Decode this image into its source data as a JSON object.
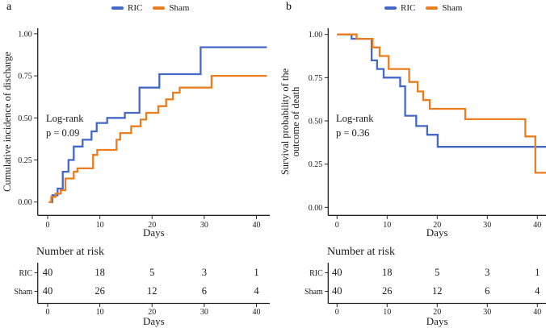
{
  "figure_title": "",
  "legend": {
    "entries": [
      {
        "label": "RIC",
        "color": "#4468C8"
      },
      {
        "label": "Sham",
        "color": "#EC7D1E"
      }
    ]
  },
  "chart_data": [
    {
      "type": "line",
      "step": true,
      "panel_label": "a",
      "xlabel": "Days",
      "ylabel_lines": [
        "Cumulative incidence of discharge"
      ],
      "xlim": [
        0,
        42
      ],
      "ylim": [
        0,
        1
      ],
      "x_ticks": [
        0,
        10,
        20,
        30,
        40
      ],
      "y_tick_values": [
        0,
        0.25,
        0.5,
        0.75,
        1
      ],
      "y_tick_labels": [
        "0.00",
        "0.25",
        "0.50",
        "0.75",
        "1.00"
      ],
      "grid": false,
      "legend_position": "top",
      "annotation_lines": [
        "Log-rank",
        "p = 0.09"
      ],
      "series": [
        {
          "name": "RIC",
          "color": "#4468C8",
          "points": [
            [
              0.3,
              0
            ],
            [
              0.9,
              0.04
            ],
            [
              1.9,
              0.08
            ],
            [
              2.9,
              0.18
            ],
            [
              4.0,
              0.25
            ],
            [
              5.0,
              0.33
            ],
            [
              6.7,
              0.37
            ],
            [
              8.4,
              0.42
            ],
            [
              9.4,
              0.47
            ],
            [
              11.4,
              0.5
            ],
            [
              14.8,
              0.53
            ],
            [
              17.6,
              0.68
            ],
            [
              21.4,
              0.76
            ],
            [
              29.3,
              0.92
            ],
            [
              42,
              0.92
            ]
          ]
        },
        {
          "name": "Sham",
          "color": "#EC7D1E",
          "points": [
            [
              0.2,
              0
            ],
            [
              0.7,
              0.03
            ],
            [
              1.5,
              0.05
            ],
            [
              2.5,
              0.07
            ],
            [
              3.4,
              0.14
            ],
            [
              5.0,
              0.18
            ],
            [
              5.7,
              0.2
            ],
            [
              8.7,
              0.28
            ],
            [
              9.5,
              0.31
            ],
            [
              13.2,
              0.37
            ],
            [
              13.9,
              0.41
            ],
            [
              16.0,
              0.45
            ],
            [
              17.8,
              0.49
            ],
            [
              18.9,
              0.53
            ],
            [
              21.2,
              0.57
            ],
            [
              22.7,
              0.61
            ],
            [
              24.0,
              0.65
            ],
            [
              25.3,
              0.68
            ],
            [
              31.4,
              0.75
            ],
            [
              42,
              0.75
            ]
          ]
        }
      ],
      "risk_table": {
        "title": "Number at risk",
        "xlabel": "Days",
        "x_ticks": [
          0,
          10,
          20,
          30,
          40
        ],
        "rows": [
          {
            "name": "RIC",
            "values": [
              "40",
              "18",
              "5",
              "3",
              "1"
            ]
          },
          {
            "name": "Sham",
            "values": [
              "40",
              "26",
              "12",
              "6",
              "4"
            ]
          }
        ]
      }
    },
    {
      "type": "line",
      "step": true,
      "panel_label": "b",
      "xlabel": "Days",
      "ylabel_lines": [
        "Survival probability of the",
        "outcome of death"
      ],
      "xlim": [
        0,
        42
      ],
      "ylim": [
        0,
        1
      ],
      "x_ticks": [
        0,
        10,
        20,
        30,
        40
      ],
      "y_tick_values": [
        0,
        0.25,
        0.5,
        0.75,
        1
      ],
      "y_tick_labels": [
        "0.00",
        "0.25",
        "0.50",
        "0.75",
        "1.00"
      ],
      "grid": false,
      "legend_position": "top",
      "annotation_lines": [
        "Log-rank",
        "p = 0.36"
      ],
      "series": [
        {
          "name": "RIC",
          "color": "#4468C8",
          "points": [
            [
              0,
              1.0
            ],
            [
              2.9,
              0.975
            ],
            [
              6.9,
              0.85
            ],
            [
              8.0,
              0.8
            ],
            [
              9.3,
              0.75
            ],
            [
              12.6,
              0.7
            ],
            [
              13.6,
              0.53
            ],
            [
              15.8,
              0.47
            ],
            [
              18.0,
              0.42
            ],
            [
              20.1,
              0.35
            ],
            [
              42,
              0.35
            ]
          ]
        },
        {
          "name": "Sham",
          "color": "#EC7D1E",
          "points": [
            [
              0,
              1.0
            ],
            [
              3.9,
              0.975
            ],
            [
              7.1,
              0.925
            ],
            [
              8.5,
              0.875
            ],
            [
              10.3,
              0.8
            ],
            [
              14.4,
              0.725
            ],
            [
              16.1,
              0.67
            ],
            [
              17.2,
              0.62
            ],
            [
              18.5,
              0.57
            ],
            [
              25.6,
              0.51
            ],
            [
              37.6,
              0.41
            ],
            [
              39.6,
              0.2
            ],
            [
              42,
              0.2
            ]
          ]
        }
      ],
      "risk_table": {
        "title": "Number at risk",
        "xlabel": "Days",
        "x_ticks": [
          0,
          10,
          20,
          30,
          40
        ],
        "rows": [
          {
            "name": "RIC",
            "values": [
              "40",
              "18",
              "5",
              "3",
              "1"
            ]
          },
          {
            "name": "Sham",
            "values": [
              "40",
              "26",
              "12",
              "6",
              "4"
            ]
          }
        ]
      }
    }
  ]
}
